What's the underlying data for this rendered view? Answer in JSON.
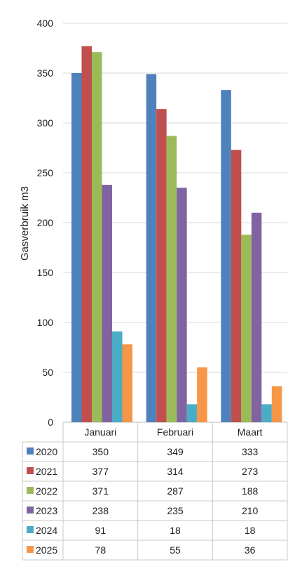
{
  "chart_data": {
    "type": "bar",
    "ylabel": "Gasverbruik m3",
    "ylim": [
      0,
      400
    ],
    "yticks": [
      0,
      50,
      100,
      150,
      200,
      250,
      300,
      350,
      400
    ],
    "grid": true,
    "categories": [
      "Januari",
      "Februari",
      "Maart"
    ],
    "series": [
      {
        "name": "2020",
        "color": "#4F81BD",
        "values": [
          350,
          349,
          333
        ]
      },
      {
        "name": "2021",
        "color": "#C0504D",
        "values": [
          377,
          314,
          273
        ]
      },
      {
        "name": "2022",
        "color": "#9BBB59",
        "values": [
          371,
          287,
          188
        ]
      },
      {
        "name": "2023",
        "color": "#8064A2",
        "values": [
          238,
          235,
          210
        ]
      },
      {
        "name": "2024",
        "color": "#4BACC6",
        "values": [
          91,
          18,
          18
        ]
      },
      {
        "name": "2025",
        "color": "#F79646",
        "values": [
          78,
          55,
          36
        ]
      }
    ],
    "legend": "data-table"
  }
}
